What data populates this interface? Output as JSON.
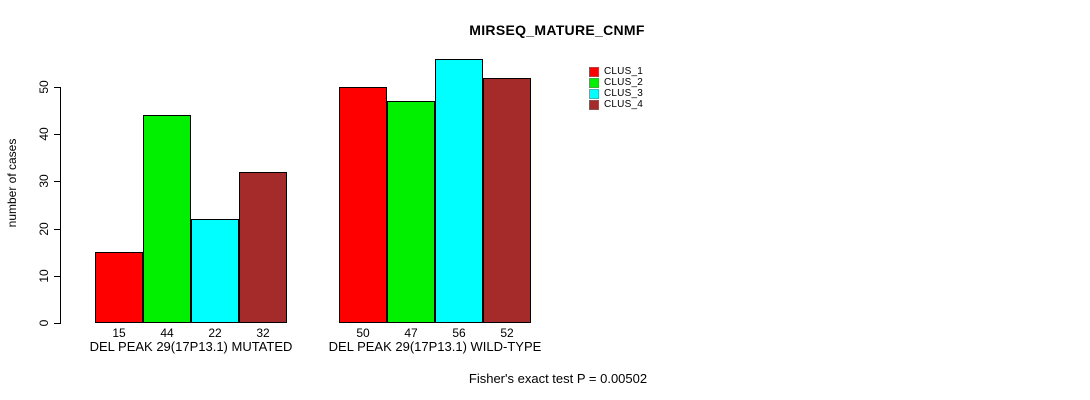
{
  "chart_data": {
    "type": "bar",
    "title": "MIRSEQ_MATURE_CNMF",
    "ylabel": "number of cases",
    "xlabel": "",
    "ylim": [
      0,
      56
    ],
    "yticks": [
      0,
      10,
      20,
      30,
      40,
      50
    ],
    "grid": false,
    "legend_position": "top-right",
    "show_value_labels": true,
    "background": "#ffffff",
    "categories": [
      "DEL PEAK 29(17P13.1) MUTATED",
      "DEL PEAK 29(17P13.1) WILD-TYPE"
    ],
    "groups": [
      {
        "label": "DEL PEAK 29(17P13.1) MUTATED",
        "values": [
          15,
          44,
          22,
          32
        ]
      },
      {
        "label": "DEL PEAK 29(17P13.1) WILD-TYPE",
        "values": [
          50,
          47,
          56,
          52
        ]
      }
    ],
    "series": [
      {
        "name": "CLUS_1",
        "color": "#ff0000"
      },
      {
        "name": "CLUS_2",
        "color": "#00f000"
      },
      {
        "name": "CLUS_3",
        "color": "#00ffff"
      },
      {
        "name": "CLUS_4",
        "color": "#a52a2a"
      }
    ],
    "annotation": "Fisher's exact test P = 0.00502"
  }
}
